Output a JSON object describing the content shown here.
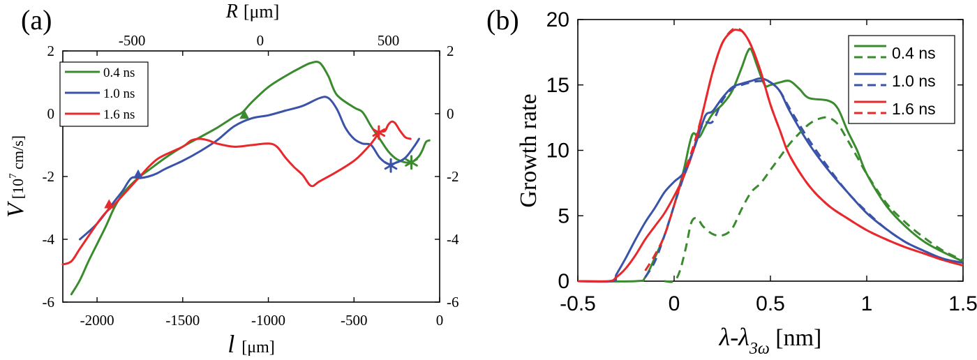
{
  "panel_labels": {
    "a": "(a)",
    "b": "(b)"
  },
  "chart_data": [
    {
      "panel": "(a)",
      "type": "line",
      "x_axis_bottom": {
        "label_main": "l",
        "label_unit": "[μm]",
        "ticks": [
          -2000,
          -1500,
          -1000,
          -500,
          0
        ],
        "tick_labels": [
          "-2000",
          "-1500",
          "-1000",
          "-500",
          "0"
        ],
        "range": [
          -2200,
          0
        ]
      },
      "x_axis_top": {
        "label_main": "R",
        "label_unit": "[μm]",
        "ticks": [
          -500,
          0,
          500
        ],
        "tick_labels": [
          "-500",
          "0",
          "500"
        ],
        "range": [
          -770,
          700
        ]
      },
      "y_axis": {
        "label_main": "V",
        "label_unit": "[10",
        "label_exp": "7",
        "label_tail": " cm/s]",
        "ticks": [
          -6,
          -4,
          -2,
          0,
          2
        ],
        "tick_labels": [
          "-6",
          "-4",
          "-2",
          "0",
          "2"
        ],
        "range": [
          -6,
          2
        ]
      },
      "legend": {
        "position": "top-left"
      },
      "grid": false,
      "series": [
        {
          "name": "0.4 ns",
          "color": "#3a8a2e",
          "x": [
            -2150,
            -2100,
            -2050,
            -2000,
            -1950,
            -1900,
            -1850,
            -1800,
            -1750,
            -1700,
            -1600,
            -1500,
            -1400,
            -1300,
            -1200,
            -1150,
            -1100,
            -1000,
            -900,
            -800,
            -750,
            -700,
            -650,
            -600,
            -500,
            -450,
            -400,
            -350,
            -300,
            -250,
            -200,
            -170,
            -150,
            -120,
            -100,
            -80,
            -60
          ],
          "y": [
            -5.75,
            -5.3,
            -4.7,
            -4.15,
            -3.6,
            -3.0,
            -2.55,
            -2.25,
            -2.0,
            -1.8,
            -1.4,
            -1.05,
            -0.75,
            -0.45,
            -0.1,
            0.05,
            0.35,
            0.85,
            1.2,
            1.5,
            1.62,
            1.62,
            1.2,
            0.6,
            0.2,
            0.05,
            -0.4,
            -0.8,
            -1.2,
            -1.45,
            -1.55,
            -1.55,
            -1.5,
            -1.35,
            -1.15,
            -0.9,
            -0.85
          ]
        },
        {
          "name": "1.0 ns",
          "color": "#3a53a8",
          "x": [
            -2100,
            -2000,
            -1900,
            -1850,
            -1800,
            -1750,
            -1700,
            -1650,
            -1600,
            -1500,
            -1400,
            -1300,
            -1200,
            -1100,
            -1000,
            -900,
            -800,
            -700,
            -650,
            -600,
            -550,
            -500,
            -450,
            -400,
            -350,
            -300,
            -250,
            -200,
            -150,
            -120
          ],
          "y": [
            -4.0,
            -3.5,
            -2.8,
            -2.45,
            -2.05,
            -2.05,
            -2.0,
            -1.9,
            -1.75,
            -1.5,
            -1.2,
            -0.85,
            -0.4,
            -0.15,
            -0.05,
            0.1,
            0.25,
            0.5,
            0.5,
            0.15,
            -0.45,
            -0.8,
            -0.95,
            -1.0,
            -1.4,
            -1.6,
            -1.55,
            -1.4,
            -1.05,
            -0.8
          ]
        },
        {
          "name": "1.6 ns",
          "color": "#e8282b",
          "x": [
            -2200,
            -2150,
            -2100,
            -2000,
            -1950,
            -1900,
            -1850,
            -1800,
            -1750,
            -1700,
            -1650,
            -1600,
            -1500,
            -1450,
            -1400,
            -1350,
            -1300,
            -1200,
            -1100,
            -1000,
            -950,
            -900,
            -850,
            -800,
            -750,
            -700,
            -600,
            -500,
            -450,
            -400,
            -350,
            -320,
            -300,
            -280,
            -260,
            -230,
            -200,
            -170
          ],
          "y": [
            -4.8,
            -4.7,
            -4.3,
            -3.5,
            -3.15,
            -2.9,
            -2.6,
            -2.3,
            -2.0,
            -1.7,
            -1.45,
            -1.3,
            -1.05,
            -0.85,
            -0.8,
            -0.85,
            -0.95,
            -1.05,
            -1.0,
            -0.95,
            -1.05,
            -1.4,
            -1.7,
            -1.95,
            -2.3,
            -2.15,
            -1.85,
            -1.5,
            -1.25,
            -0.95,
            -0.6,
            -0.55,
            -0.35,
            -0.25,
            -0.3,
            -0.55,
            -0.75,
            -0.8
          ]
        }
      ],
      "markers": [
        {
          "series": "0.4 ns",
          "shape": "triangle",
          "x": -1140,
          "y": -0.05
        },
        {
          "series": "1.0 ns",
          "shape": "triangle",
          "x": -1760,
          "y": -1.95
        },
        {
          "series": "1.6 ns",
          "shape": "triangle",
          "x": -1930,
          "y": -2.9
        },
        {
          "series": "0.4 ns",
          "shape": "asterisk",
          "x": -165,
          "y": -1.55
        },
        {
          "series": "1.0 ns",
          "shape": "asterisk",
          "x": -285,
          "y": -1.65
        },
        {
          "series": "1.6 ns",
          "shape": "asterisk",
          "x": -355,
          "y": -0.6
        }
      ]
    },
    {
      "panel": "(b)",
      "type": "line",
      "x_axis": {
        "label_pre": "λ-λ",
        "label_sub": "3ω",
        "label_unit": " [nm]",
        "ticks": [
          -0.5,
          0,
          0.5,
          1,
          1.5
        ],
        "tick_labels": [
          "-0.5",
          "0",
          "0.5",
          "1",
          "1.5"
        ],
        "range": [
          -0.5,
          1.5
        ]
      },
      "y_axis": {
        "label": "Growth rate",
        "ticks": [
          0,
          5,
          10,
          15,
          20
        ],
        "tick_labels": [
          "0",
          "5",
          "10",
          "15",
          "20"
        ],
        "range": [
          0,
          20
        ]
      },
      "legend": {
        "position": "top-right"
      },
      "grid": false,
      "series": [
        {
          "name": "0.4 ns",
          "color": "#3a8a2e",
          "style": "solid",
          "x": [
            -0.5,
            -0.2,
            -0.15,
            -0.1,
            -0.05,
            0.0,
            0.05,
            0.08,
            0.1,
            0.13,
            0.16,
            0.2,
            0.25,
            0.3,
            0.35,
            0.38,
            0.4,
            0.43,
            0.47,
            0.5,
            0.55,
            0.6,
            0.65,
            0.7,
            0.8,
            0.85,
            0.9,
            0.95,
            1.0,
            1.1,
            1.2,
            1.3,
            1.4,
            1.5
          ],
          "y": [
            0,
            0,
            0.3,
            1.8,
            3.5,
            5.8,
            8.5,
            10.5,
            11.3,
            11.0,
            11.8,
            12.8,
            13.5,
            14.5,
            16.3,
            17.5,
            17.7,
            16.5,
            15.0,
            15.0,
            15.2,
            15.3,
            14.7,
            14.0,
            13.8,
            13.2,
            11.5,
            10.0,
            8.2,
            5.8,
            4.2,
            3.0,
            2.2,
            1.5
          ]
        },
        {
          "name": "1.0 ns",
          "color": "#3a53a8",
          "style": "solid",
          "x": [
            -0.5,
            -0.32,
            -0.3,
            -0.25,
            -0.2,
            -0.15,
            -0.1,
            -0.05,
            0.0,
            0.05,
            0.1,
            0.15,
            0.17,
            0.2,
            0.25,
            0.3,
            0.35,
            0.4,
            0.45,
            0.5,
            0.55,
            0.6,
            0.7,
            0.8,
            0.9,
            1.0,
            1.1,
            1.2,
            1.3,
            1.4,
            1.5
          ],
          "y": [
            0,
            0,
            0.5,
            1.8,
            3.2,
            4.5,
            5.6,
            6.8,
            7.6,
            8.3,
            10.0,
            12.2,
            12.8,
            13.0,
            14.0,
            14.8,
            15.1,
            15.3,
            15.5,
            15.2,
            14.5,
            13.0,
            10.5,
            8.5,
            6.8,
            5.2,
            4.0,
            3.0,
            2.3,
            1.7,
            1.4
          ]
        },
        {
          "name": "1.6 ns",
          "color": "#e8282b",
          "style": "solid",
          "x": [
            -0.5,
            -0.34,
            -0.3,
            -0.25,
            -0.2,
            -0.15,
            -0.1,
            -0.05,
            0.0,
            0.05,
            0.1,
            0.15,
            0.2,
            0.25,
            0.3,
            0.33,
            0.36,
            0.4,
            0.45,
            0.5,
            0.55,
            0.6,
            0.7,
            0.8,
            0.9,
            1.0,
            1.1,
            1.2,
            1.3,
            1.4,
            1.5
          ],
          "y": [
            0,
            0,
            0.3,
            1.0,
            2.0,
            3.2,
            4.2,
            5.2,
            6.5,
            8.0,
            10.0,
            13.0,
            16.0,
            18.2,
            19.1,
            19.2,
            19.0,
            18.0,
            16.0,
            13.5,
            11.5,
            9.6,
            7.3,
            5.8,
            4.8,
            3.9,
            3.2,
            2.6,
            2.1,
            1.6,
            1.2
          ]
        },
        {
          "name": "0.4 ns",
          "color": "#3a8a2e",
          "style": "dashed",
          "x": [
            -0.05,
            0.0,
            0.03,
            0.06,
            0.09,
            0.12,
            0.15,
            0.2,
            0.25,
            0.3,
            0.35,
            0.4,
            0.45,
            0.5,
            0.55,
            0.6,
            0.65,
            0.7,
            0.75,
            0.8,
            0.85,
            0.9,
            0.95,
            1.0,
            1.1,
            1.2,
            1.3,
            1.4,
            1.5
          ],
          "y": [
            0,
            0,
            0.8,
            2.5,
            4.5,
            4.8,
            4.2,
            3.6,
            3.5,
            4.0,
            5.5,
            6.8,
            7.5,
            8.5,
            9.5,
            10.5,
            11.3,
            12.0,
            12.4,
            12.5,
            12.0,
            10.8,
            9.5,
            8.2,
            6.0,
            4.5,
            3.3,
            2.3,
            1.6
          ]
        },
        {
          "name": "1.0 ns",
          "color": "#3a53a8",
          "style": "dashed",
          "x": [
            -0.15,
            -0.1,
            -0.05,
            0.0,
            0.05,
            0.1,
            0.15,
            0.2,
            0.25,
            0.3,
            0.35,
            0.4,
            0.45,
            0.5,
            0.55,
            0.6,
            0.7,
            0.8,
            0.9,
            1.0,
            1.1,
            1.2,
            1.3,
            1.4,
            1.5
          ],
          "y": [
            0.3,
            1.5,
            3.5,
            5.8,
            8.0,
            10.0,
            12.0,
            12.2,
            13.8,
            14.7,
            15.0,
            15.2,
            15.3,
            15.2,
            14.5,
            13.2,
            10.8,
            8.7,
            6.8,
            5.3,
            4.0,
            3.0,
            2.3,
            1.7,
            1.4
          ]
        },
        {
          "name": "1.6 ns",
          "color": "#e8282b",
          "style": "dashed",
          "x": [
            -0.15,
            -0.1,
            -0.05,
            0.0,
            0.05,
            0.1,
            0.15,
            0.2,
            0.25,
            0.3,
            0.33,
            0.36,
            0.4,
            0.45,
            0.5,
            0.55,
            0.6,
            0.7,
            0.8,
            0.9,
            1.0,
            1.1,
            1.2,
            1.3,
            1.4,
            1.5
          ],
          "y": [
            0.8,
            2.0,
            3.5,
            5.8,
            8.2,
            10.3,
            13.0,
            16.0,
            18.2,
            19.2,
            19.3,
            19.0,
            18.0,
            16.0,
            13.5,
            11.5,
            9.6,
            7.3,
            5.8,
            4.8,
            3.9,
            3.2,
            2.6,
            2.1,
            1.6,
            1.2
          ]
        }
      ]
    }
  ]
}
